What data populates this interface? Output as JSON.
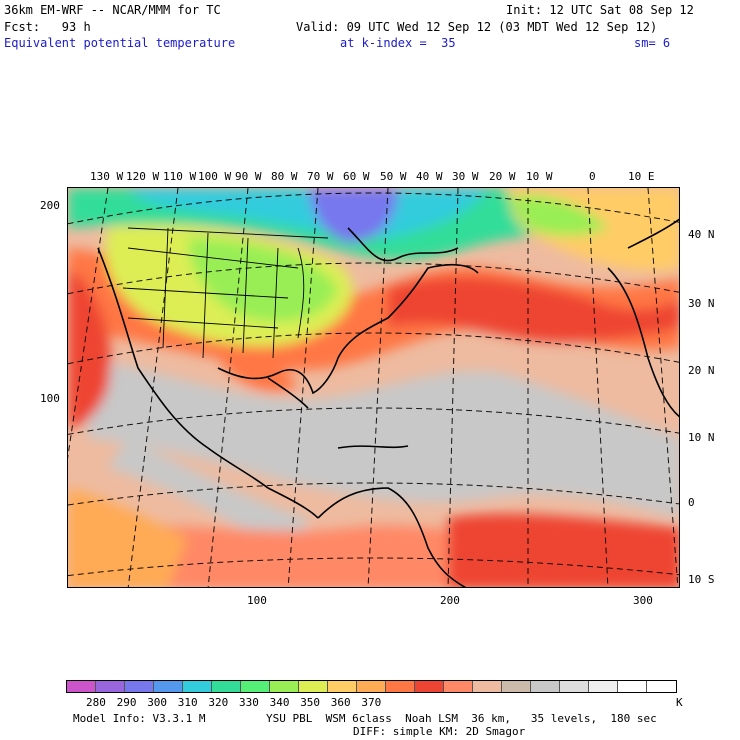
{
  "header": {
    "model_title": "36km EM-WRF -- NCAR/MMM for TC",
    "init_time": "Init: 12 UTC Sat 08 Sep 12",
    "forecast_label": "Fcst:   93 h",
    "valid_time": "Valid: 09 UTC Wed 12 Sep 12 (03 MDT Wed 12 Sep 12)",
    "field_name": "Equivalent potential temperature",
    "level": "at k-index =  35",
    "smoothing": "sm= 6"
  },
  "map": {
    "top_longitudes": [
      "130 W",
      "120 W",
      "110 W",
      "100 W",
      "90 W",
      "80 W",
      "70 W",
      "60 W",
      "50 W",
      "40 W",
      "30 W",
      "20 W",
      "10 W",
      "0",
      "10 E"
    ],
    "right_latitudes": [
      "40 N",
      "30 N",
      "20 N",
      "10 N",
      "0",
      "10 S"
    ],
    "left_grid_ticks": [
      "200",
      "100"
    ],
    "bottom_grid_ticks": [
      "100",
      "200",
      "300"
    ]
  },
  "colorbar": {
    "colors": [
      "#cc55cc",
      "#9966dd",
      "#7777ee",
      "#5599ee",
      "#33ccdd",
      "#33dd99",
      "#55ee77",
      "#99ee55",
      "#ddee55",
      "#ffcc66",
      "#ffaa55",
      "#ff7744",
      "#ee4433",
      "#ff8866",
      "#eebba0",
      "#ccbbaa",
      "#c8c8c8",
      "#dddddd",
      "#eeeeee",
      "#ffffff",
      "#ffffff"
    ],
    "tick_labels": [
      "280",
      "290",
      "300",
      "310",
      "320",
      "330",
      "340",
      "350",
      "360",
      "370"
    ],
    "unit": "K"
  },
  "footer": {
    "model_info": "Model Info: V3.3.1 M",
    "physics_line1": "YSU PBL  WSM 6class  Noah LSM  36 km,   35 levels,  180 sec",
    "physics_line2": "DIFF: simple KM: 2D Smagor"
  }
}
